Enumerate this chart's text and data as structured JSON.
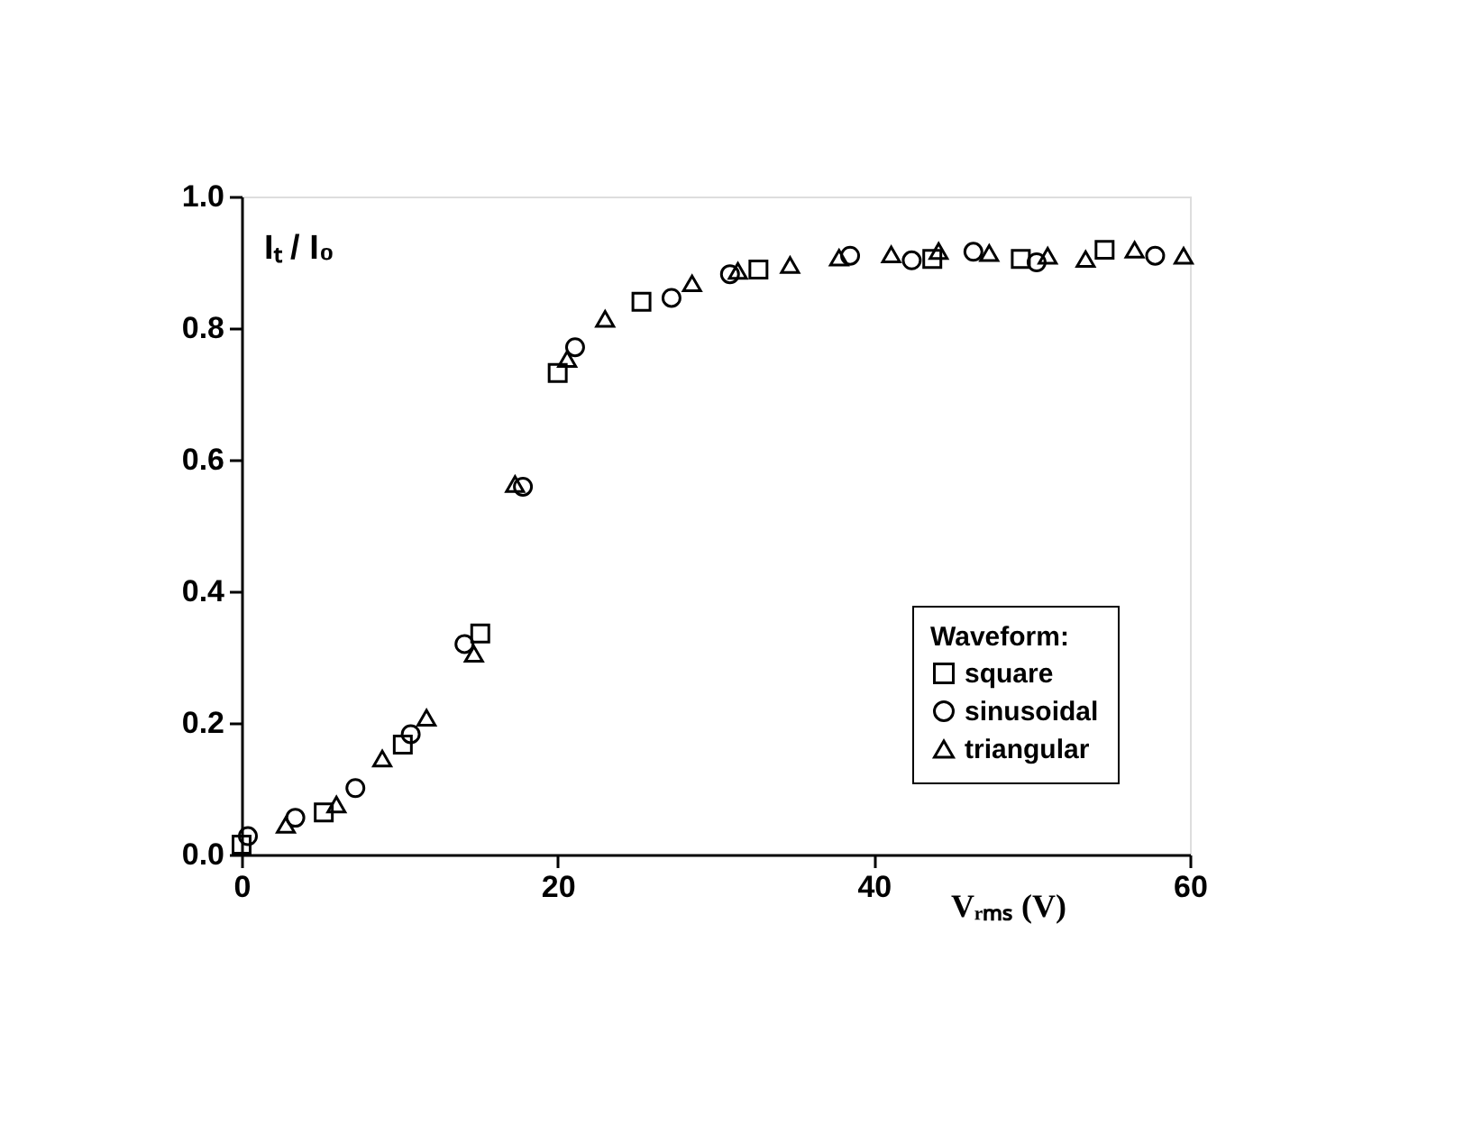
{
  "chart_data": {
    "type": "scatter",
    "xlabel": "Vᵣₘₛ (V)",
    "ylabel": "Iₜ / I₀",
    "legend_title": "Waveform:",
    "legend": "bottom right",
    "grid": false,
    "xlim": [
      0,
      60
    ],
    "xticks": [
      0,
      20,
      40,
      60
    ],
    "ylim": [
      0,
      1.0
    ],
    "yticks": [
      {
        "value": 0,
        "label": "0.0"
      },
      0.2,
      0.4,
      0.6,
      0.8,
      {
        "value": 1.0,
        "label": "1.0"
      }
    ],
    "series": [
      {
        "name": "square",
        "marker": "square",
        "color": "#000000",
        "x": [
          0,
          5.2,
          10.2,
          15.1,
          20.0,
          25.3,
          32.7,
          43.7,
          49.3,
          54.6
        ],
        "values": [
          0.015,
          0.064,
          0.167,
          0.336,
          0.732,
          0.84,
          0.889,
          0.905,
          0.905,
          0.919
        ]
      },
      {
        "name": "sinusoidal",
        "marker": "circle",
        "color": "#000000",
        "x": [
          0.4,
          3.4,
          7.2,
          10.7,
          14.1,
          17.8,
          21.1,
          27.2,
          30.9,
          38.5,
          42.4,
          46.3,
          50.3,
          57.8
        ],
        "values": [
          0.028,
          0.056,
          0.101,
          0.183,
          0.32,
          0.559,
          0.771,
          0.846,
          0.882,
          0.91,
          0.903,
          0.916,
          0.9,
          0.91
        ]
      },
      {
        "name": "triangular",
        "marker": "triangle",
        "color": "#000000",
        "x": [
          2.8,
          6.0,
          8.9,
          11.7,
          14.7,
          17.3,
          20.6,
          23.0,
          28.5,
          31.4,
          34.7,
          37.8,
          41.1,
          44.1,
          47.3,
          51.0,
          53.4,
          56.5,
          59.6
        ],
        "values": [
          0.045,
          0.076,
          0.146,
          0.208,
          0.305,
          0.563,
          0.753,
          0.814,
          0.868,
          0.887,
          0.896,
          0.907,
          0.912,
          0.917,
          0.914,
          0.91,
          0.905,
          0.919,
          0.91
        ]
      }
    ]
  }
}
